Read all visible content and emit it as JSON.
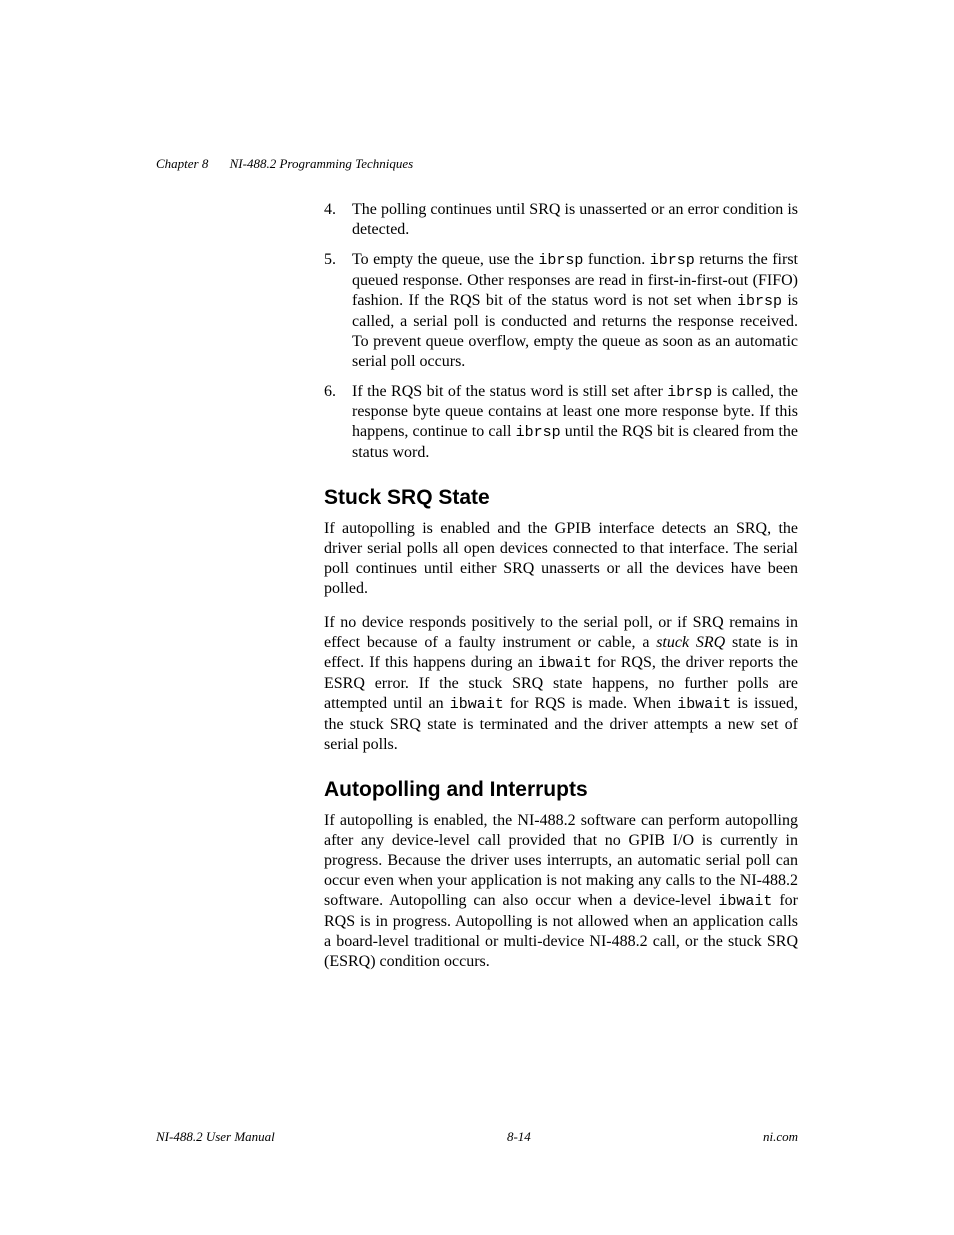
{
  "header": {
    "chapter": "Chapter 8",
    "title": "NI-488.2 Programming Techniques"
  },
  "list": {
    "item4": {
      "num": "4.",
      "text": "The polling continues until SRQ is unasserted or an error condition is detected."
    },
    "item5": {
      "num": "5.",
      "p1a": "To empty the queue, use the ",
      "code1": "ibrsp",
      "p1b": " function. ",
      "code2": "ibrsp",
      "p1c": " returns the first queued response. Other responses are read in first-in-first-out (FIFO) fashion. If the RQS bit of the status word is not set when ",
      "code3": "ibrsp",
      "p1d": " is called, a serial poll is conducted and returns the response received. To prevent queue overflow, empty the queue as soon as an automatic serial poll occurs."
    },
    "item6": {
      "num": "6.",
      "p1a": "If the RQS bit of the status word is still set after ",
      "code1": "ibrsp",
      "p1b": " is called, the response byte queue contains at least one more response byte. If this happens, continue to call ",
      "code2": "ibrsp",
      "p1c": " until the RQS bit is cleared from the status word."
    }
  },
  "section1": {
    "heading": "Stuck SRQ State",
    "para1": "If autopolling is enabled and the GPIB interface detects an SRQ, the driver serial polls all open devices connected to that interface. The serial poll continues until either SRQ unasserts or all the devices have been polled.",
    "para2a": "If no device responds positively to the serial poll, or if SRQ remains in effect because of a faulty instrument or cable, a ",
    "para2_em": "stuck SRQ",
    "para2b": " state is in effect. If this happens during an ",
    "code1": "ibwait",
    "para2c": " for RQS, the driver reports the ESRQ error. If the stuck SRQ state happens, no further polls are attempted until an ",
    "code2": "ibwait",
    "para2d": " for RQS is made. When ",
    "code3": "ibwait",
    "para2e": " is issued, the stuck SRQ state is terminated and the driver attempts a new set of serial polls."
  },
  "section2": {
    "heading": "Autopolling and Interrupts",
    "para1a": "If autopolling is enabled, the NI-488.2 software can perform autopolling after any device-level call provided that no GPIB I/O is currently in progress. Because the driver uses interrupts, an automatic serial poll can occur even when your application is not making any calls to the NI-488.2 software. Autopolling can also occur when a device-level ",
    "code1": "ibwait",
    "para1b": " for RQS is in progress. Autopolling is not allowed when an application calls a board-level traditional or multi-device NI-488.2 call, or the stuck SRQ (ESRQ) condition occurs."
  },
  "footer": {
    "left": "NI-488.2 User Manual",
    "center": "8-14",
    "right": "ni.com"
  }
}
